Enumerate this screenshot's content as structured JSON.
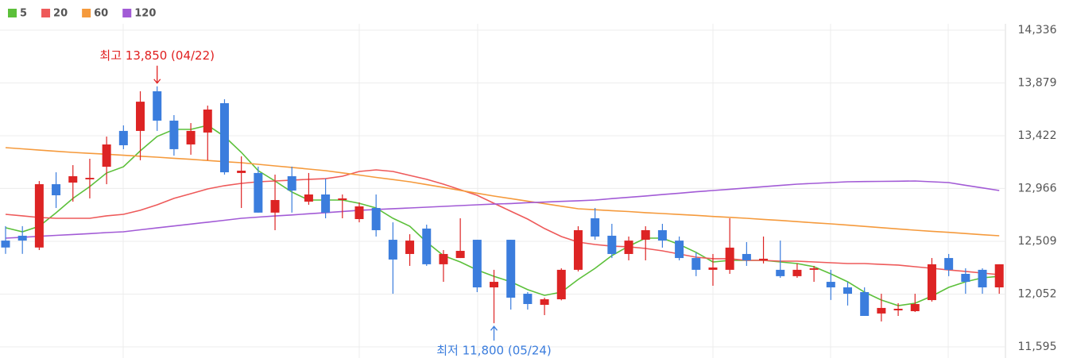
{
  "chart_data": {
    "type": "candlestick",
    "up_color": "#dd2424",
    "down_color": "#3b7ddd",
    "open": [
      12515,
      12557,
      12455,
      13003,
      13017,
      13045,
      13154,
      13464,
      13464,
      13807,
      13553,
      13347,
      13450,
      13704,
      13100,
      13100,
      12757,
      13072,
      12852,
      12914,
      12866,
      12701,
      12797,
      12522,
      12399,
      12619,
      12310,
      12364,
      12522,
      12110,
      12522,
      12055,
      11959,
      12007,
      12262,
      12708,
      12557,
      12399,
      12522,
      12605,
      12515,
      12364,
      12262,
      12262,
      12399,
      12344,
      12262,
      12207,
      12262,
      12158,
      12110,
      12069,
      11884,
      11911,
      11904,
      12000,
      12364,
      12227,
      12262,
      12110
    ],
    "high": [
      12640,
      12640,
      13030,
      13106,
      13168,
      13223,
      13415,
      13512,
      13807,
      13850,
      13601,
      13532,
      13683,
      13738,
      13244,
      13155,
      13086,
      13155,
      13100,
      13052,
      12914,
      12845,
      12914,
      12673,
      12570,
      12653,
      12433,
      12708,
      12522,
      12262,
      12522,
      12069,
      12021,
      12275,
      12639,
      12797,
      12660,
      12550,
      12639,
      12660,
      12550,
      12413,
      12399,
      12708,
      12502,
      12550,
      12515,
      12317,
      12296,
      12262,
      12158,
      12110,
      12055,
      11973,
      12055,
      12364,
      12399,
      12275,
      12275,
      12310
    ],
    "low": [
      12400,
      12400,
      12433,
      12797,
      12852,
      12880,
      13003,
      13306,
      13210,
      13464,
      13250,
      13258,
      13210,
      13086,
      12797,
      12757,
      12605,
      12757,
      12825,
      12708,
      12708,
      12673,
      12550,
      12055,
      12296,
      12296,
      12158,
      12364,
      12069,
      11800,
      11918,
      11918,
      11870,
      11998,
      12248,
      12522,
      12364,
      12344,
      12344,
      12454,
      12344,
      12207,
      12124,
      12227,
      12296,
      12317,
      12193,
      12193,
      12158,
      12001,
      11953,
      11863,
      11815,
      11863,
      11897,
      11987,
      12207,
      12055,
      12055,
      12055
    ],
    "close": [
      12455,
      12515,
      13003,
      12907,
      13072,
      13058,
      13347,
      13340,
      13717,
      13553,
      13306,
      13464,
      13649,
      13106,
      13120,
      12757,
      12866,
      12948,
      12914,
      12757,
      12880,
      12811,
      12605,
      12351,
      12515,
      12310,
      12399,
      12426,
      12110,
      12158,
      12021,
      11966,
      12007,
      12262,
      12605,
      12550,
      12399,
      12515,
      12605,
      12515,
      12364,
      12262,
      12282,
      12454,
      12344,
      12358,
      12207,
      12262,
      12275,
      12110,
      12055,
      11863,
      11932,
      11925,
      11966,
      12310,
      12262,
      12158,
      12110,
      12310
    ],
    "series": [
      {
        "name": "5",
        "color": "#5cc03a",
        "values": [
          12626,
          12591,
          12639,
          12756,
          12880,
          12983,
          13100,
          13154,
          13292,
          13416,
          13477,
          13477,
          13512,
          13416,
          13278,
          13120,
          13031,
          12935,
          12866,
          12866,
          12866,
          12838,
          12797,
          12708,
          12639,
          12502,
          12385,
          12330,
          12261,
          12206,
          12158,
          12090,
          12041,
          12069,
          12179,
          12275,
          12385,
          12467,
          12536,
          12536,
          12481,
          12413,
          12330,
          12344,
          12344,
          12344,
          12330,
          12316,
          12289,
          12227,
          12158,
          12069,
          12000,
          11952,
          11973,
          12035,
          12110,
          12158,
          12193,
          12206
        ]
      },
      {
        "name": "20",
        "color": "#ee5a5a",
        "values": [
          12742,
          12729,
          12715,
          12708,
          12708,
          12708,
          12729,
          12742,
          12777,
          12825,
          12880,
          12921,
          12962,
          12990,
          13010,
          13024,
          13031,
          13038,
          13045,
          13051,
          13072,
          13113,
          13127,
          13113,
          13079,
          13045,
          13003,
          12955,
          12907,
          12838,
          12769,
          12701,
          12619,
          12550,
          12502,
          12481,
          12467,
          12461,
          12447,
          12426,
          12399,
          12371,
          12358,
          12358,
          12344,
          12344,
          12337,
          12337,
          12330,
          12323,
          12316,
          12316,
          12309,
          12303,
          12289,
          12275,
          12261,
          12248,
          12234,
          12220
        ]
      },
      {
        "name": "60",
        "color": "#f59a3c",
        "values": [
          13319,
          13309,
          13298,
          13288,
          13278,
          13270,
          13262,
          13253,
          13245,
          13237,
          13227,
          13218,
          13208,
          13198,
          13189,
          13175,
          13161,
          13148,
          13134,
          13120,
          13101,
          13082,
          13062,
          13043,
          13024,
          12999,
          12975,
          12950,
          12925,
          12900,
          12878,
          12856,
          12834,
          12812,
          12790,
          12782,
          12774,
          12766,
          12757,
          12749,
          12741,
          12733,
          12724,
          12716,
          12708,
          12698,
          12689,
          12679,
          12669,
          12660,
          12649,
          12638,
          12627,
          12616,
          12605,
          12595,
          12586,
          12576,
          12566,
          12557
        ]
      },
      {
        "name": "120",
        "color": "#a25bd6",
        "values": [
          12536,
          12544,
          12552,
          12560,
          12568,
          12575,
          12584,
          12591,
          12608,
          12625,
          12641,
          12658,
          12674,
          12691,
          12708,
          12718,
          12728,
          12737,
          12747,
          12757,
          12767,
          12777,
          12784,
          12791,
          12797,
          12804,
          12811,
          12818,
          12825,
          12831,
          12836,
          12843,
          12848,
          12854,
          12860,
          12866,
          12878,
          12889,
          12901,
          12913,
          12925,
          12937,
          12948,
          12959,
          12970,
          12981,
          12992,
          13003,
          13010,
          13017,
          13024,
          13026,
          13027,
          13029,
          13031,
          13024,
          13017,
          12994,
          12971,
          12948
        ]
      }
    ],
    "annotations": {
      "high": "최고 13,850 (04/22)",
      "low": "최저 11,800 (05/24)"
    },
    "ylim": [
      11595,
      14336
    ],
    "yticks": [
      {
        "value": 11595,
        "label": "11,595"
      },
      {
        "value": 12052,
        "label": "12,052"
      },
      {
        "value": 12509,
        "label": "12,509"
      },
      {
        "value": 12966,
        "label": "12,966"
      },
      {
        "value": 13422,
        "label": "13,422"
      },
      {
        "value": 13879,
        "label": "13,879"
      },
      {
        "value": 14336,
        "label": "14,336"
      }
    ],
    "grid": true
  }
}
